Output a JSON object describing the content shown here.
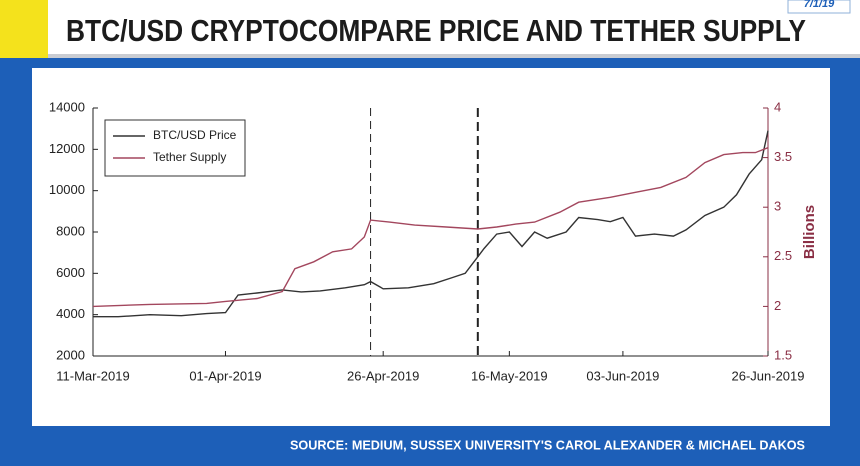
{
  "header": {
    "title": "BTC/USD CRYPTOCOMPARE PRICE AND TETHER SUPPLY",
    "date": "7/1/19"
  },
  "source": "SOURCE: MEDIUM, SUSSEX UNIVERSITY'S CAROL ALEXANDER & MICHAEL DAKOS",
  "chart_data": {
    "type": "line",
    "y2_label": "Billions",
    "xlim": [
      "2019-03-11",
      "2019-06-26"
    ],
    "xticks": [
      {
        "value": "2019-03-11",
        "label": "11-Mar-2019"
      },
      {
        "value": "2019-04-01",
        "label": "01-Apr-2019"
      },
      {
        "value": "2019-04-26",
        "label": "26-Apr-2019"
      },
      {
        "value": "2019-05-16",
        "label": "16-May-2019"
      },
      {
        "value": "2019-06-03",
        "label": "03-Jun-2019"
      },
      {
        "value": "2019-06-26",
        "label": "26-Jun-2019"
      }
    ],
    "ylim": [
      2000,
      14000
    ],
    "yticks": [
      2000,
      4000,
      6000,
      8000,
      10000,
      12000,
      14000
    ],
    "y2lim": [
      1.5,
      4
    ],
    "y2ticks": [
      1.5,
      2,
      2.5,
      3,
      3.5,
      4
    ],
    "vlines": [
      "2019-04-24",
      "2019-05-11"
    ],
    "legend": "upper left",
    "series": [
      {
        "name": "BTC/USD Price",
        "color": "#333333",
        "x": [
          "2019-03-11",
          "2019-03-15",
          "2019-03-20",
          "2019-03-25",
          "2019-03-29",
          "2019-04-01",
          "2019-04-03",
          "2019-04-06",
          "2019-04-10",
          "2019-04-13",
          "2019-04-16",
          "2019-04-20",
          "2019-04-23",
          "2019-04-24",
          "2019-04-26",
          "2019-04-30",
          "2019-05-04",
          "2019-05-07",
          "2019-05-09",
          "2019-05-11",
          "2019-05-12",
          "2019-05-14",
          "2019-05-16",
          "2019-05-18",
          "2019-05-20",
          "2019-05-22",
          "2019-05-25",
          "2019-05-27",
          "2019-05-30",
          "2019-06-01",
          "2019-06-03",
          "2019-06-05",
          "2019-06-08",
          "2019-06-11",
          "2019-06-13",
          "2019-06-16",
          "2019-06-19",
          "2019-06-21",
          "2019-06-23",
          "2019-06-25",
          "2019-06-26"
        ],
        "values": [
          3900,
          3900,
          4000,
          3950,
          4050,
          4100,
          4950,
          5050,
          5200,
          5100,
          5150,
          5300,
          5450,
          5600,
          5250,
          5300,
          5500,
          5800,
          6000,
          6800,
          7200,
          7900,
          8000,
          7300,
          8000,
          7700,
          8000,
          8700,
          8600,
          8500,
          8700,
          7800,
          7900,
          7800,
          8100,
          8800,
          9200,
          9800,
          10800,
          11500,
          12900
        ]
      },
      {
        "name": "Tether Supply",
        "color": "#a3475e",
        "axis": "y2",
        "x": [
          "2019-03-11",
          "2019-03-20",
          "2019-03-29",
          "2019-04-01",
          "2019-04-06",
          "2019-04-10",
          "2019-04-12",
          "2019-04-15",
          "2019-04-18",
          "2019-04-21",
          "2019-04-23",
          "2019-04-24",
          "2019-04-27",
          "2019-05-01",
          "2019-05-06",
          "2019-05-11",
          "2019-05-14",
          "2019-05-17",
          "2019-05-20",
          "2019-05-24",
          "2019-05-27",
          "2019-06-01",
          "2019-06-05",
          "2019-06-09",
          "2019-06-13",
          "2019-06-16",
          "2019-06-19",
          "2019-06-22",
          "2019-06-24",
          "2019-06-26"
        ],
        "values": [
          2.0,
          2.02,
          2.03,
          2.05,
          2.08,
          2.15,
          2.38,
          2.45,
          2.55,
          2.58,
          2.7,
          2.87,
          2.85,
          2.82,
          2.8,
          2.78,
          2.8,
          2.83,
          2.85,
          2.95,
          3.05,
          3.1,
          3.15,
          3.2,
          3.3,
          3.45,
          3.53,
          3.55,
          3.55,
          3.6
        ]
      }
    ]
  }
}
